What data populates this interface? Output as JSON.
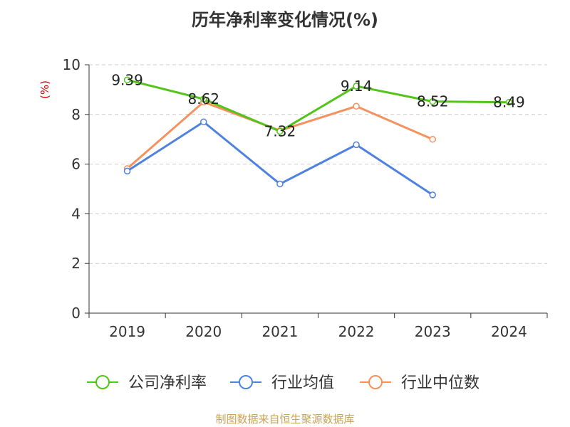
{
  "chart_data": {
    "type": "line",
    "title": "历年净利率变化情况(%)",
    "ylabel": "(%)",
    "xlabel": "",
    "categories": [
      "2019",
      "2020",
      "2021",
      "2022",
      "2023",
      "2024"
    ],
    "ylim": [
      0,
      10
    ],
    "yticks": [
      0,
      2,
      4,
      6,
      8,
      10
    ],
    "grid": true,
    "legend_position": "bottom",
    "series": [
      {
        "name": "公司净利率",
        "color": "#52c41a",
        "values": [
          9.39,
          8.62,
          7.32,
          9.14,
          8.52,
          8.49
        ],
        "show_labels": true
      },
      {
        "name": "行业均值",
        "color": "#4f81df",
        "values": [
          5.72,
          7.7,
          5.2,
          6.78,
          4.76,
          null
        ],
        "show_labels": false
      },
      {
        "name": "行业中位数",
        "color": "#f4915e",
        "values": [
          5.82,
          8.5,
          7.35,
          8.33,
          7.0,
          null
        ],
        "show_labels": false
      }
    ]
  },
  "footer": {
    "source": "制图数据来自恒生聚源数据库"
  }
}
